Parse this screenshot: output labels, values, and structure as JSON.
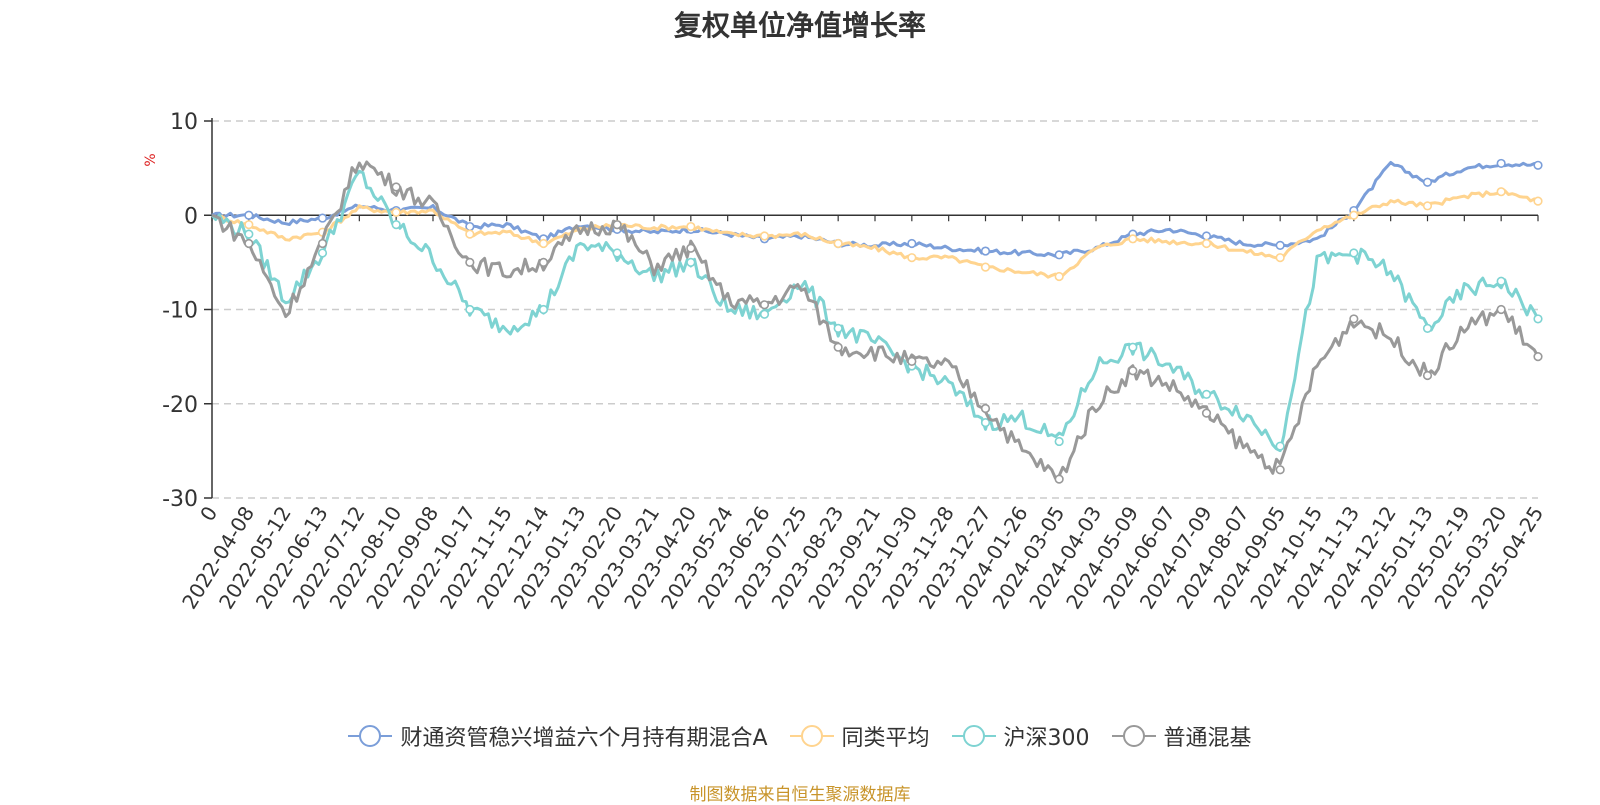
{
  "chart_data": {
    "type": "line",
    "title": "复权单位净值增长率",
    "ylabel": "%",
    "xlabel": "",
    "ylim": [
      -30,
      10
    ],
    "yticks": [
      10,
      0,
      -10,
      -20,
      -30
    ],
    "ytick_labels": [
      "10",
      "0",
      "-10",
      "-20",
      "-30"
    ],
    "grid": "horizontal-dashed",
    "x": [
      "0",
      "2022-04-08",
      "2022-05-12",
      "2022-06-13",
      "2022-07-12",
      "2022-08-10",
      "2022-09-08",
      "2022-10-17",
      "2022-11-15",
      "2022-12-14",
      "2023-01-13",
      "2023-02-20",
      "2023-03-21",
      "2023-04-20",
      "2023-05-24",
      "2023-06-26",
      "2023-07-25",
      "2023-08-23",
      "2023-09-21",
      "2023-10-30",
      "2023-11-28",
      "2023-12-27",
      "2024-01-26",
      "2024-03-05",
      "2024-04-03",
      "2024-05-09",
      "2024-06-07",
      "2024-07-09",
      "2024-08-07",
      "2024-09-05",
      "2024-10-15",
      "2024-11-13",
      "2024-12-12",
      "2025-01-13",
      "2025-02-19",
      "2025-03-20",
      "2025-04-25"
    ],
    "series": [
      {
        "name": "财通资管稳兴增益六个月持有期混合A",
        "color": "#7b9ed9",
        "values": [
          0,
          0,
          -0.8,
          -0.3,
          1.0,
          0.5,
          0.8,
          -1.2,
          -1.0,
          -2.5,
          -1.0,
          -1.5,
          -1.8,
          -1.5,
          -2.0,
          -2.5,
          -2.2,
          -3.0,
          -3.2,
          -3.0,
          -3.5,
          -3.8,
          -4.0,
          -4.2,
          -3.5,
          -2.0,
          -1.5,
          -2.2,
          -3.0,
          -3.2,
          -2.5,
          0.5,
          5.5,
          3.5,
          5.0,
          5.5,
          5.3
        ]
      },
      {
        "name": "同类平均",
        "color": "#ffd48f",
        "values": [
          0,
          -1.0,
          -2.5,
          -1.8,
          0.8,
          0.3,
          0.5,
          -2.0,
          -1.8,
          -3.0,
          -1.5,
          -1.0,
          -1.3,
          -1.2,
          -2.0,
          -2.2,
          -2.0,
          -3.0,
          -3.5,
          -4.5,
          -4.5,
          -5.5,
          -6.0,
          -6.5,
          -3.5,
          -2.5,
          -2.8,
          -3.0,
          -3.8,
          -4.5,
          -1.5,
          0,
          1.5,
          1.0,
          2.0,
          2.5,
          1.5
        ]
      },
      {
        "name": "沪深300",
        "color": "#7ed3d2",
        "values": [
          0,
          -2.0,
          -9.0,
          -4.0,
          4.5,
          -1.0,
          -4.5,
          -10.0,
          -12.0,
          -10.0,
          -3.0,
          -4.0,
          -6.5,
          -5.0,
          -10.0,
          -10.5,
          -7.0,
          -12.0,
          -13.5,
          -16.0,
          -18.0,
          -22.0,
          -21.5,
          -24.0,
          -16.0,
          -14.0,
          -16.0,
          -19.0,
          -21.0,
          -24.5,
          -5.0,
          -4.0,
          -6.0,
          -12.0,
          -8.0,
          -7.0,
          -11.0
        ]
      },
      {
        "name": "普通混基",
        "color": "#999999",
        "values": [
          0,
          -3.0,
          -10.5,
          -3.0,
          6.0,
          3.0,
          1.0,
          -5.0,
          -6.0,
          -5.0,
          -1.5,
          -1.0,
          -5.5,
          -3.5,
          -9.0,
          -9.5,
          -7.5,
          -14.0,
          -14.5,
          -15.5,
          -16.0,
          -20.5,
          -25.0,
          -28.0,
          -20.0,
          -16.5,
          -18.0,
          -21.0,
          -24.5,
          -27.0,
          -16.0,
          -11.0,
          -13.0,
          -17.0,
          -12.0,
          -10.0,
          -15.0
        ]
      }
    ],
    "legend_position": "bottom-center"
  },
  "source_note": "制图数据来自恒生聚源数据库"
}
